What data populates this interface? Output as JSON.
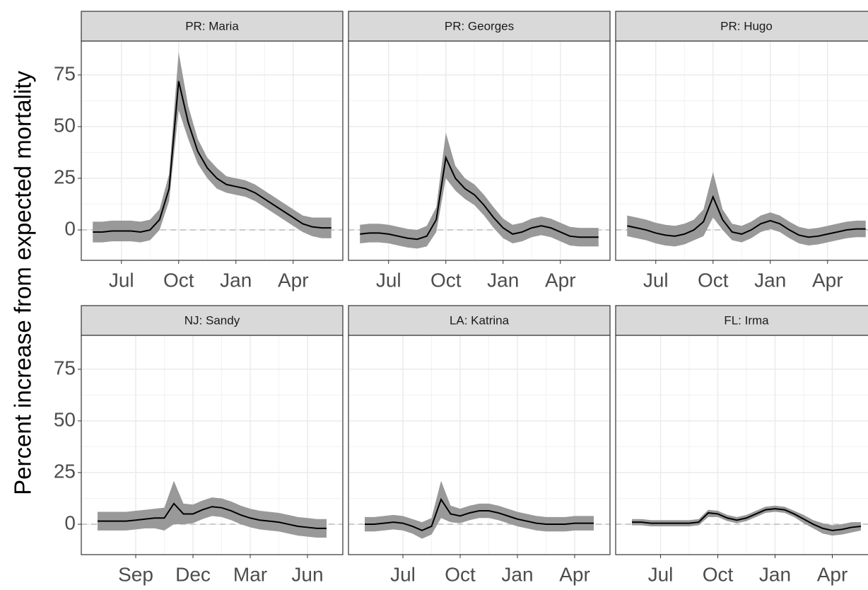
{
  "y_label": "Percent increase from expected mortality",
  "chart_data": [
    {
      "type": "line",
      "title": "PR: Maria",
      "categories": [
        null,
        null,
        null,
        "Jul",
        null,
        null,
        null,
        null,
        null,
        "Oct",
        null,
        null,
        null,
        null,
        null,
        "Jan",
        null,
        null,
        null,
        null,
        null,
        "Apr",
        null,
        null,
        null,
        null
      ],
      "values": [
        -1,
        -1,
        -0.5,
        -0.5,
        -0.5,
        -1,
        0,
        5,
        20,
        72,
        52,
        38,
        30,
        25,
        22,
        21,
        20,
        18,
        15,
        12,
        9,
        6,
        3,
        1.5,
        1,
        1
      ],
      "lower": [
        -6,
        -6,
        -5.5,
        -5.5,
        -5.5,
        -6,
        -5,
        0,
        14,
        58,
        44,
        32,
        25,
        20,
        18,
        17,
        16,
        14,
        11,
        8,
        5,
        2,
        -1,
        -3,
        -4,
        -4
      ],
      "upper": [
        4,
        4,
        4.5,
        4.5,
        4.5,
        4,
        5,
        10,
        27,
        86,
        60,
        44,
        35,
        30,
        26,
        25,
        24,
        22,
        19,
        16,
        13,
        10,
        7,
        6,
        6,
        6
      ],
      "color": "#000000",
      "band_color": "#999999",
      "hline": 0,
      "ylim": [
        -14.7,
        91.4
      ],
      "yticks": [
        0,
        25,
        50,
        75
      ]
    },
    {
      "type": "line",
      "title": "PR: Georges",
      "categories": [
        null,
        null,
        null,
        "Jul",
        null,
        null,
        null,
        null,
        null,
        "Oct",
        null,
        null,
        null,
        null,
        null,
        "Jan",
        null,
        null,
        null,
        null,
        null,
        "Apr",
        null,
        null,
        null,
        null
      ],
      "values": [
        -2,
        -1.5,
        -1.5,
        -2,
        -3,
        -4,
        -4.5,
        -3,
        5,
        35,
        25,
        20,
        17,
        12,
        6,
        1,
        -2,
        -1,
        1,
        2,
        1,
        -1,
        -3,
        -3.5,
        -3.5,
        -3.5
      ],
      "lower": [
        -6.5,
        -6,
        -6,
        -6.5,
        -7.5,
        -8.5,
        -9,
        -8,
        -1,
        25,
        19,
        15,
        12,
        7,
        1,
        -4,
        -6.5,
        -5.5,
        -3.5,
        -2.5,
        -3.5,
        -5.5,
        -7.5,
        -8,
        -8,
        -8
      ],
      "upper": [
        2.5,
        3,
        3,
        2.5,
        1.5,
        0.5,
        0,
        2,
        11,
        47,
        31,
        25,
        22,
        17,
        11,
        5.5,
        2.5,
        3.5,
        5.5,
        6.5,
        5.5,
        3.5,
        1.5,
        1,
        1,
        1
      ],
      "color": "#000000",
      "band_color": "#999999",
      "hline": 0,
      "ylim": [
        -14.7,
        91.4
      ],
      "yticks": [
        0,
        25,
        50,
        75
      ]
    },
    {
      "type": "line",
      "title": "PR: Hugo",
      "categories": [
        null,
        null,
        null,
        "Jul",
        null,
        null,
        null,
        null,
        null,
        "Oct",
        null,
        null,
        null,
        null,
        null,
        "Jan",
        null,
        null,
        null,
        null,
        null,
        "Apr",
        null,
        null,
        null,
        null
      ],
      "values": [
        2,
        1,
        0,
        -1.5,
        -2.5,
        -3,
        -2,
        0,
        4,
        16,
        5,
        -1,
        -2,
        0,
        3,
        4.5,
        3,
        0,
        -2.5,
        -3.5,
        -3,
        -2,
        -1,
        0,
        0.5,
        0.5
      ],
      "lower": [
        -3,
        -4,
        -5,
        -6.5,
        -7.5,
        -8,
        -7,
        -5,
        -3,
        6,
        0,
        -5,
        -6,
        -4,
        -1,
        0.5,
        -1,
        -4,
        -6.5,
        -7.5,
        -7,
        -6,
        -5,
        -4,
        -3.5,
        -3.5
      ],
      "upper": [
        7,
        6,
        5,
        3.5,
        2.5,
        2,
        3,
        5,
        10,
        28,
        10,
        3,
        2,
        4,
        7,
        8.5,
        7,
        4,
        1.5,
        0.5,
        1,
        2,
        3,
        4,
        4.5,
        4.5
      ],
      "color": "#000000",
      "band_color": "#999999",
      "hline": 0,
      "ylim": [
        -14.7,
        91.4
      ],
      "yticks": [
        0,
        25,
        50,
        75
      ]
    },
    {
      "type": "line",
      "title": "NJ: Sandy",
      "categories": [
        null,
        null,
        null,
        null,
        "Sep",
        null,
        null,
        null,
        null,
        null,
        "Dec",
        null,
        null,
        null,
        null,
        null,
        "Mar",
        null,
        null,
        null,
        null,
        null,
        "Jun",
        null,
        null
      ],
      "values": [
        1.5,
        1.5,
        1.5,
        1.5,
        2,
        2.5,
        3,
        3,
        10,
        5,
        5,
        7,
        8.5,
        8,
        6.5,
        4.5,
        3,
        2,
        1.5,
        1,
        0,
        -1,
        -1.5,
        -2,
        -2
      ],
      "lower": [
        -3,
        -3,
        -3,
        -3,
        -2.5,
        -2,
        -2,
        -3,
        0,
        0,
        0.5,
        2.5,
        4,
        3.5,
        2,
        0,
        -1.5,
        -2.5,
        -3,
        -3.5,
        -4.5,
        -5.5,
        -6,
        -6.5,
        -6.5
      ],
      "upper": [
        6,
        6,
        6,
        6,
        6.5,
        7,
        7.5,
        8,
        21,
        10,
        9.5,
        11.5,
        13,
        12.5,
        11,
        9,
        7.5,
        6.5,
        6,
        5.5,
        4.5,
        3.5,
        3,
        2.5,
        2.5
      ],
      "color": "#000000",
      "band_color": "#999999",
      "hline": 0,
      "ylim": [
        -14.7,
        91.4
      ],
      "yticks": [
        0,
        25,
        50,
        75
      ]
    },
    {
      "type": "line",
      "title": "LA: Katrina",
      "categories": [
        null,
        null,
        null,
        null,
        "Jul",
        null,
        null,
        null,
        null,
        null,
        "Oct",
        null,
        null,
        null,
        null,
        null,
        "Jan",
        null,
        null,
        null,
        null,
        null,
        "Apr",
        null,
        null
      ],
      "values": [
        0,
        0,
        0.5,
        1,
        0.5,
        -1,
        -3,
        -1,
        12,
        5,
        4,
        5.5,
        6.5,
        6.5,
        5.5,
        4,
        2.5,
        1.5,
        0.5,
        0,
        0,
        0,
        0.5,
        0.5,
        0.5
      ],
      "lower": [
        -3.5,
        -3.5,
        -3,
        -2.5,
        -3,
        -4.5,
        -7,
        -5,
        3,
        1,
        0.5,
        2,
        3,
        3,
        2,
        0.5,
        -1,
        -2,
        -3,
        -3.5,
        -3.5,
        -3.5,
        -3,
        -3,
        -3
      ],
      "upper": [
        3.5,
        3.5,
        4,
        4.5,
        4,
        2.5,
        1,
        3,
        21,
        9,
        7.5,
        9,
        10,
        10,
        9,
        7.5,
        6,
        5,
        4,
        3.5,
        3.5,
        3.5,
        4,
        4,
        4
      ],
      "color": "#000000",
      "band_color": "#999999",
      "hline": 0,
      "ylim": [
        -14.7,
        91.4
      ],
      "yticks": [
        0,
        25,
        50,
        75
      ]
    },
    {
      "type": "line",
      "title": "FL: Irma",
      "categories": [
        null,
        null,
        null,
        "Jul",
        null,
        null,
        null,
        null,
        null,
        "Oct",
        null,
        null,
        null,
        null,
        null,
        "Jan",
        null,
        null,
        null,
        null,
        null,
        "Apr",
        null,
        null,
        null
      ],
      "values": [
        1,
        1,
        0.5,
        0.5,
        0.5,
        0.5,
        0.5,
        1,
        5.5,
        5,
        3,
        2,
        3,
        5,
        7,
        7.5,
        7,
        5,
        2.5,
        0,
        -2,
        -3,
        -2.5,
        -1.5,
        -1
      ],
      "lower": [
        -0.5,
        -0.5,
        -1,
        -1,
        -1,
        -1,
        -1,
        -0.5,
        3.5,
        3.5,
        1.5,
        0.5,
        1.5,
        3.5,
        5.5,
        6,
        5.5,
        3.5,
        0.5,
        -2,
        -4.5,
        -5.5,
        -5,
        -4,
        -3
      ],
      "upper": [
        2.5,
        2.5,
        2,
        2,
        2,
        2,
        2,
        2.5,
        7,
        6.5,
        4.5,
        3.5,
        4.5,
        6.5,
        8.5,
        9,
        8.5,
        6.5,
        4.5,
        2,
        0.5,
        -0.5,
        0,
        1,
        1
      ],
      "color": "#000000",
      "band_color": "#999999",
      "hline": 0,
      "ylim": [
        -14.7,
        91.4
      ],
      "yticks": [
        0,
        25,
        50,
        75
      ]
    }
  ]
}
